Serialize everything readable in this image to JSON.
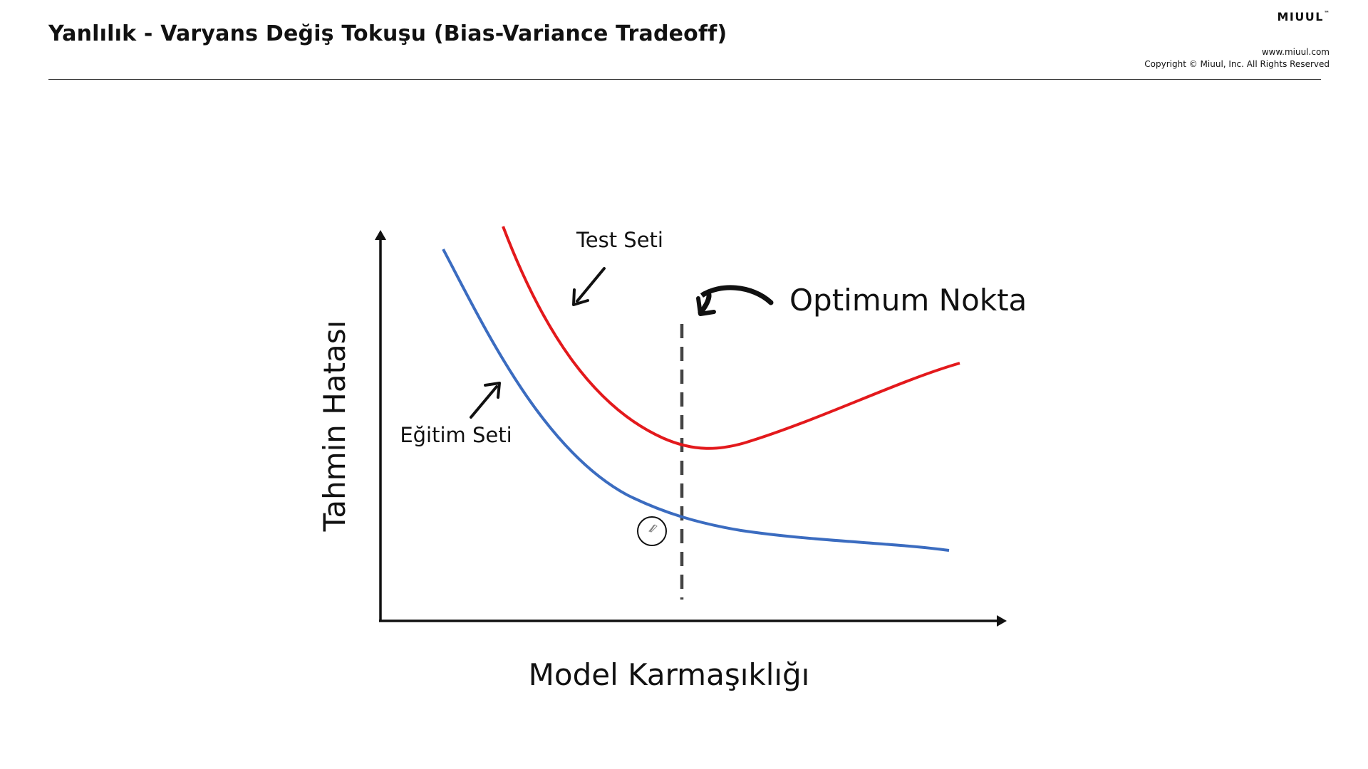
{
  "header": {
    "title": "Yanlılık - Varyans Değiş Tokuşu (Bias-Variance Tradeoff)",
    "brand": "MIUUL",
    "brand_mark": "™",
    "website": "www.miuul.com",
    "copyright": "Copyright © Miuul, Inc. All Rights Reserved"
  },
  "diagram": {
    "y_axis_label": "Tahmin Hatası",
    "x_axis_label": "Model Karmaşıklığı",
    "test_curve_label": "Test Seti",
    "train_curve_label": "Eğitim Seti",
    "optimum_label": "Optimum Nokta",
    "colors": {
      "test_curve": "#e3191c",
      "train_curve": "#3b6cc0",
      "optimum_line": "#444444",
      "axes": "#111111"
    },
    "icons": [
      "arrow-up-icon",
      "arrow-right-icon",
      "arrow-down-left-icon",
      "arrow-up-right-icon",
      "curved-arrow-icon",
      "pen-cursor-icon"
    ]
  }
}
